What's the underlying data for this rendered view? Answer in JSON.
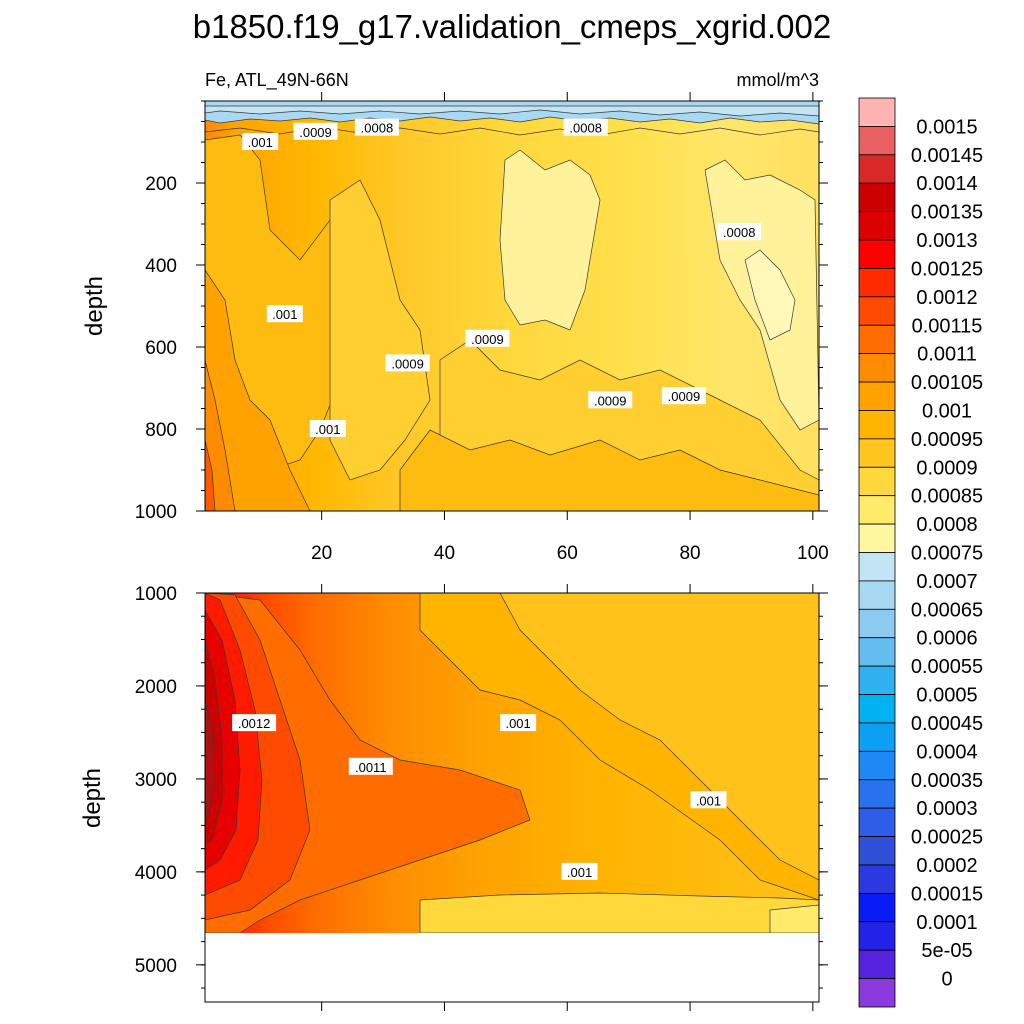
{
  "chart_data": {
    "type": "contour",
    "title": "b1850.f19_g17.validation_cmeps_xgrid.002",
    "subtitle_left": "Fe, ATL_49N-66N",
    "subtitle_right": "mmol/m^3",
    "ylabel": "depth",
    "x_range": [
      1,
      101
    ],
    "x_ticks": [
      "20",
      "40",
      "60",
      "80",
      "100"
    ],
    "panels": [
      {
        "name": "upper",
        "ylim": [
          0,
          1000
        ],
        "y_ticks": [
          "200",
          "400",
          "600",
          "800",
          "1000"
        ],
        "contour_labels": [
          {
            "text": ".001",
            "x": 10,
            "y": 100
          },
          {
            "text": ".0009",
            "x": 19,
            "y": 75
          },
          {
            "text": ".0008",
            "x": 29,
            "y": 65
          },
          {
            "text": ".0008",
            "x": 63,
            "y": 65
          },
          {
            "text": ".0008",
            "x": 88,
            "y": 320
          },
          {
            "text": ".001",
            "x": 14,
            "y": 520
          },
          {
            "text": ".0009",
            "x": 34,
            "y": 640
          },
          {
            "text": ".0009",
            "x": 47,
            "y": 580
          },
          {
            "text": ".0009",
            "x": 67,
            "y": 730
          },
          {
            "text": ".0009",
            "x": 79,
            "y": 720
          },
          {
            "text": ".001",
            "x": 21,
            "y": 800
          }
        ]
      },
      {
        "name": "lower",
        "ylim": [
          1000,
          5400
        ],
        "data_bottom": 4620,
        "y_ticks": [
          "1000",
          "2000",
          "3000",
          "4000",
          "5000"
        ],
        "contour_labels": [
          {
            "text": ".0012",
            "x": 9,
            "y": 2400
          },
          {
            "text": ".0011",
            "x": 28,
            "y": 2870
          },
          {
            "text": ".001",
            "x": 52,
            "y": 2400
          },
          {
            "text": ".001",
            "x": 83,
            "y": 3230
          },
          {
            "text": ".001",
            "x": 62,
            "y": 4000
          }
        ]
      }
    ],
    "colorbar": {
      "labels": [
        "0.0015",
        "0.00145",
        "0.0014",
        "0.00135",
        "0.0013",
        "0.00125",
        "0.0012",
        "0.00115",
        "0.0011",
        "0.00105",
        "0.001",
        "0.00095",
        "0.0009",
        "0.00085",
        "0.0008",
        "0.00075",
        "0.0007",
        "0.00065",
        "0.0006",
        "0.00055",
        "0.0005",
        "0.00045",
        "0.0004",
        "0.00035",
        "0.0003",
        "0.00025",
        "0.0002",
        "0.00015",
        "0.0001",
        "5e-05",
        "0"
      ],
      "colors_top_to_bottom": [
        "#ffb3b3",
        "#e86060",
        "#d82828",
        "#cc0000",
        "#dd0000",
        "#ff0000",
        "#ff2a00",
        "#ff4b00",
        "#ff6c00",
        "#ff8c00",
        "#ffa200",
        "#ffb400",
        "#ffc620",
        "#ffd83c",
        "#ffea6a",
        "#fff6a0",
        "#c2e4f4",
        "#a8d8f2",
        "#8ccaf0",
        "#64bcef",
        "#30b0ef",
        "#00b2f0",
        "#0ca0f5",
        "#1e88f5",
        "#2872f0",
        "#2e5ee8",
        "#3050d8",
        "#2a3ae0",
        "#0a1cf5",
        "#2222e8",
        "#5522dd",
        "#8a3adc"
      ]
    }
  }
}
